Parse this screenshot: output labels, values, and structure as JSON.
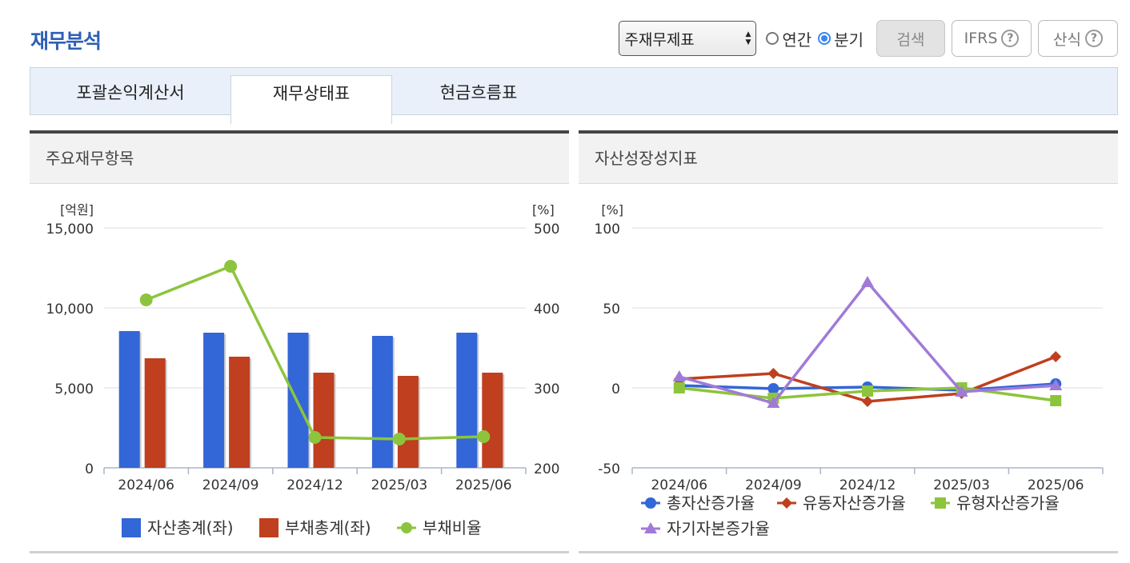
{
  "header": {
    "title": "재무분석"
  },
  "controls": {
    "select_value": "주재무제표",
    "radio_annual": "연간",
    "radio_quarter": "분기",
    "search_label": "검색",
    "ifrs_label": "IFRS",
    "calc_label": "산식",
    "help_glyph": "?"
  },
  "tabs": [
    {
      "label": "포괄손익계산서",
      "active": false
    },
    {
      "label": "재무상태표",
      "active": true
    },
    {
      "label": "현금흐름표",
      "active": false
    }
  ],
  "panels": {
    "left_title": "주요재무항목",
    "right_title": "자산성장성지표"
  },
  "colors": {
    "assets": "#3366d6",
    "liabilities": "#bf3f1f",
    "ratio": "#8dc43d",
    "growth_total": "#3366d6",
    "growth_current": "#bf3f1f",
    "growth_tangible": "#8dc43d",
    "growth_equity": "#a07ad8"
  },
  "chart_data": [
    {
      "type": "bar",
      "categories": [
        "2024/06",
        "2024/09",
        "2024/12",
        "2025/03",
        "2025/06"
      ],
      "series": [
        {
          "name": "자산총계(좌)",
          "type": "bar",
          "axis": "left",
          "values": [
            8550,
            8450,
            8450,
            8250,
            8450
          ]
        },
        {
          "name": "부채총계(좌)",
          "type": "bar",
          "axis": "left",
          "values": [
            6850,
            6950,
            5950,
            5750,
            5950
          ]
        },
        {
          "name": "부채비율",
          "type": "line",
          "axis": "right",
          "values": [
            410,
            452,
            238,
            236,
            239
          ]
        }
      ],
      "ylabel_left": "[억원]",
      "ylabel_right": "[%]",
      "ylim_left": [
        0,
        15000
      ],
      "ylim_right": [
        200,
        500
      ],
      "yticks_left": [
        "0",
        "5,000",
        "10,000",
        "15,000"
      ],
      "yticks_right": [
        "200",
        "300",
        "400",
        "500"
      ],
      "grid": true,
      "legend": "bottom"
    },
    {
      "type": "line",
      "categories": [
        "2024/06",
        "2024/09",
        "2024/12",
        "2025/03",
        "2025/06"
      ],
      "series": [
        {
          "name": "총자산증가율",
          "marker": "circle",
          "values": [
            1.5,
            -0.5,
            0.5,
            -1.5,
            2.5
          ]
        },
        {
          "name": "유동자산증가율",
          "marker": "diamond",
          "values": [
            5.5,
            9.0,
            -8.5,
            -3.5,
            19.5
          ]
        },
        {
          "name": "유형자산증가율",
          "marker": "square",
          "values": [
            0.0,
            -6.5,
            -2.0,
            0.0,
            -8.0
          ]
        },
        {
          "name": "자기자본증가율",
          "marker": "triangle",
          "values": [
            7.0,
            -9.5,
            66.0,
            -2.5,
            1.5
          ]
        }
      ],
      "ylabel": "[%]",
      "ylim": [
        -50,
        100
      ],
      "yticks": [
        "-50",
        "0",
        "50",
        "100"
      ],
      "grid": true,
      "legend": "bottom"
    }
  ]
}
